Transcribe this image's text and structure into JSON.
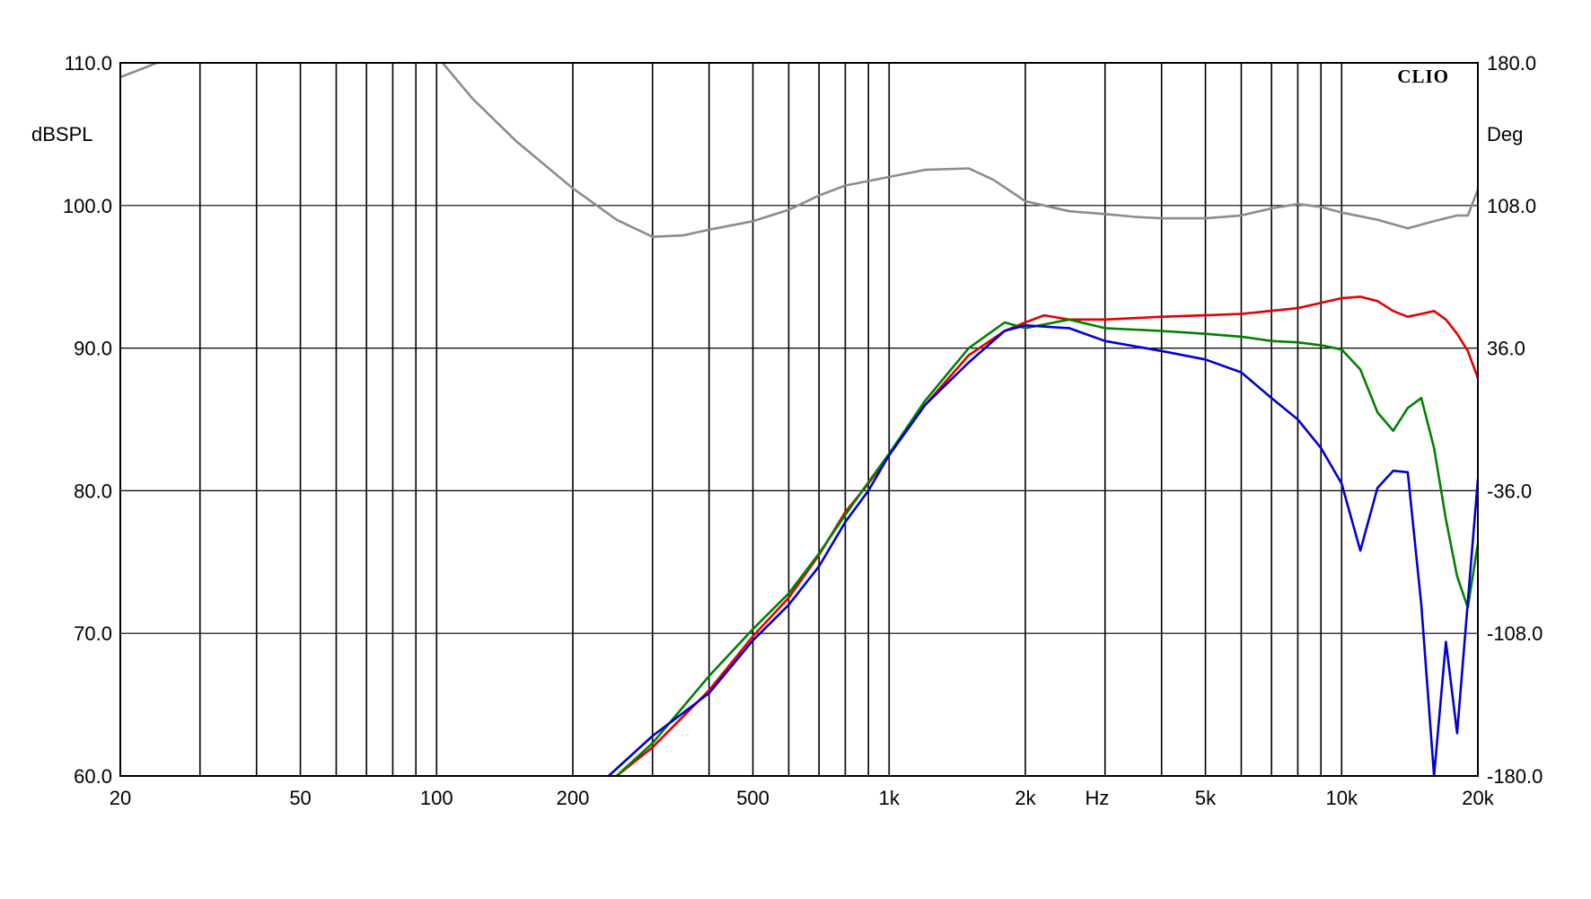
{
  "brand": "CLIO",
  "chart_data": {
    "type": "line",
    "title": "",
    "xlabel": "Hz",
    "ylabel": "dBSPL",
    "y2label": "Deg",
    "x_scale": "log",
    "xlim": [
      20,
      20000
    ],
    "ylim": [
      60,
      110
    ],
    "y2lim": [
      -180,
      180
    ],
    "grid": true,
    "x_grid": [
      20,
      30,
      40,
      50,
      60,
      70,
      80,
      90,
      100,
      200,
      300,
      400,
      500,
      600,
      700,
      800,
      900,
      1000,
      2000,
      3000,
      4000,
      5000,
      6000,
      7000,
      8000,
      9000,
      10000,
      20000
    ],
    "x_tick_labels": [
      {
        "value": 20,
        "label": "20"
      },
      {
        "value": 50,
        "label": "50"
      },
      {
        "value": 100,
        "label": "100"
      },
      {
        "value": 200,
        "label": "200"
      },
      {
        "value": 500,
        "label": "500"
      },
      {
        "value": 1000,
        "label": "1k"
      },
      {
        "value": 2000,
        "label": "2k"
      },
      {
        "value": 5000,
        "label": "5k"
      },
      {
        "value": 10000,
        "label": "10k"
      },
      {
        "value": 20000,
        "label": "20k"
      }
    ],
    "y_ticks": [
      {
        "value": 110,
        "label": "110.0"
      },
      {
        "value": 100,
        "label": "100.0"
      },
      {
        "value": 90,
        "label": "90.0"
      },
      {
        "value": 80,
        "label": "80.0"
      },
      {
        "value": 70,
        "label": "70.0"
      },
      {
        "value": 60,
        "label": "60.0"
      }
    ],
    "y2_ticks": [
      {
        "value": 180,
        "label": "180.0"
      },
      {
        "value": 108,
        "label": "108.0"
      },
      {
        "value": 36,
        "label": "36.0"
      },
      {
        "value": -36,
        "label": "-36.0"
      },
      {
        "value": -108,
        "label": "-108.0"
      },
      {
        "value": -180,
        "label": "-180.0"
      }
    ],
    "series": [
      {
        "color": "#8c8c8c",
        "x": [
          20,
          22,
          25,
          28,
          30,
          40,
          60,
          90,
          100,
          120,
          150,
          200,
          250,
          300,
          350,
          400,
          500,
          600,
          700,
          800,
          1000,
          1200,
          1500,
          1700,
          2000,
          2500,
          3000,
          3500,
          4000,
          5000,
          6000,
          7000,
          8000,
          9000,
          10000,
          12000,
          14000,
          16000,
          18000,
          19000,
          20000
        ],
        "values": [
          109.0,
          109.5,
          110.2,
          111.0,
          112.0,
          114.0,
          115.0,
          113.0,
          110.5,
          107.5,
          104.5,
          101.2,
          99.0,
          97.8,
          97.9,
          98.3,
          98.9,
          99.7,
          100.7,
          101.4,
          102.0,
          102.5,
          102.6,
          101.8,
          100.3,
          99.6,
          99.4,
          99.2,
          99.1,
          99.1,
          99.3,
          99.8,
          100.1,
          99.9,
          99.5,
          99.0,
          98.4,
          98.9,
          99.3,
          99.3,
          101.1
        ]
      },
      {
        "color": "#e00000",
        "x": [
          250,
          300,
          400,
          500,
          600,
          700,
          800,
          900,
          1000,
          1200,
          1500,
          1800,
          2000,
          2200,
          2500,
          3000,
          4000,
          5000,
          6000,
          8000,
          10000,
          11000,
          12000,
          13000,
          14000,
          15000,
          16000,
          17000,
          18000,
          19000,
          20000
        ],
        "values": [
          60.0,
          62.0,
          66.0,
          69.8,
          72.5,
          75.5,
          78.5,
          80.5,
          82.5,
          86.0,
          89.5,
          91.2,
          91.8,
          92.3,
          92.0,
          92.0,
          92.2,
          92.3,
          92.4,
          92.8,
          93.5,
          93.6,
          93.3,
          92.6,
          92.2,
          92.4,
          92.6,
          92.0,
          91.0,
          89.8,
          87.9
        ]
      },
      {
        "color": "#008000",
        "x": [
          250,
          300,
          400,
          500,
          600,
          700,
          800,
          900,
          1000,
          1200,
          1500,
          1800,
          2000,
          2500,
          3000,
          4000,
          5000,
          6000,
          7000,
          8000,
          9000,
          10000,
          11000,
          12000,
          13000,
          14000,
          15000,
          16000,
          17000,
          18000,
          19000,
          20000
        ],
        "values": [
          60.0,
          62.3,
          67.0,
          70.3,
          72.8,
          75.6,
          78.3,
          80.6,
          82.6,
          86.3,
          90.0,
          91.8,
          91.4,
          92.0,
          91.4,
          91.2,
          91.0,
          90.8,
          90.5,
          90.4,
          90.2,
          89.9,
          88.5,
          85.5,
          84.2,
          85.8,
          86.5,
          83.0,
          78.0,
          74.0,
          71.8,
          76.3
        ]
      },
      {
        "color": "#0000d0",
        "x": [
          240,
          300,
          400,
          500,
          600,
          700,
          800,
          900,
          1000,
          1200,
          1500,
          1800,
          2000,
          2500,
          3000,
          4000,
          5000,
          6000,
          7000,
          8000,
          9000,
          10000,
          11000,
          12000,
          13000,
          14000,
          15000,
          16000,
          17000,
          18000,
          19000,
          20000
        ],
        "values": [
          60.0,
          62.8,
          65.8,
          69.5,
          72.0,
          74.7,
          77.8,
          80.0,
          82.5,
          86.0,
          89.0,
          91.2,
          91.6,
          91.4,
          90.5,
          89.8,
          89.2,
          88.3,
          86.5,
          85.0,
          83.0,
          80.5,
          75.8,
          80.2,
          81.4,
          81.3,
          72.0,
          60.0,
          69.4,
          63.0,
          72.2,
          80.8
        ]
      }
    ]
  }
}
